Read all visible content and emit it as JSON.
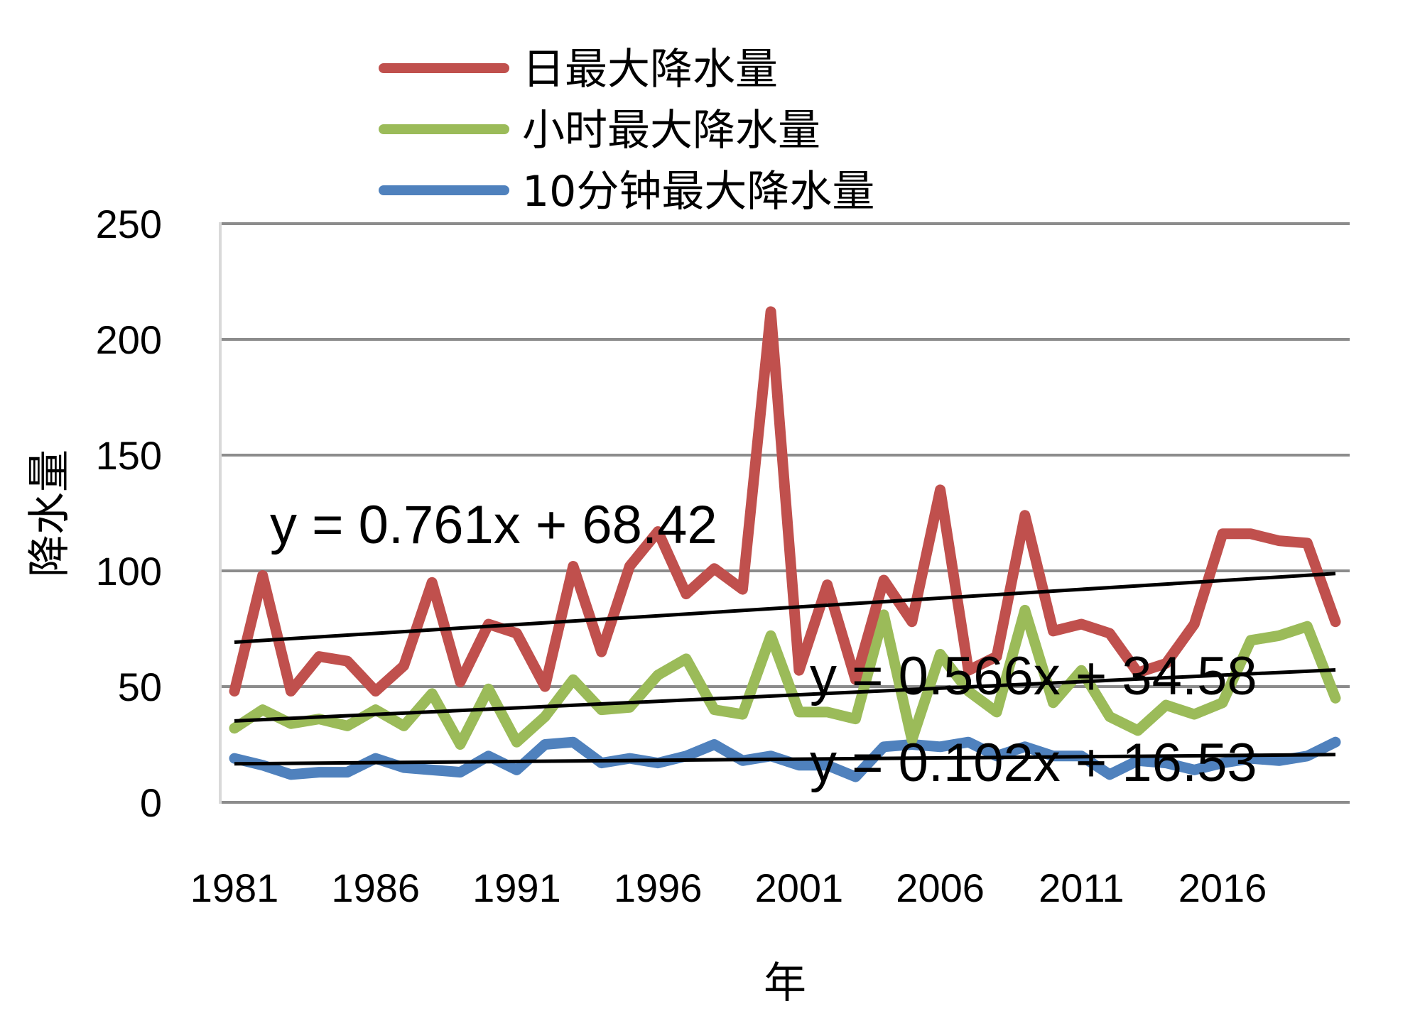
{
  "chart_data": {
    "type": "line",
    "xlabel": "年",
    "ylabel": "降水量",
    "ylim": [
      0,
      250
    ],
    "yticks": [
      "0",
      "50",
      "100",
      "150",
      "200",
      "250"
    ],
    "xticks": [
      "1981",
      "1986",
      "1991",
      "1996",
      "2001",
      "2006",
      "2011",
      "2016"
    ],
    "grid": true,
    "legend_position": "top",
    "x": [
      1981,
      1982,
      1983,
      1984,
      1985,
      1986,
      1987,
      1988,
      1989,
      1990,
      1991,
      1992,
      1993,
      1994,
      1995,
      1996,
      1997,
      1998,
      1999,
      2000,
      2001,
      2002,
      2003,
      2004,
      2005,
      2006,
      2007,
      2008,
      2009,
      2010,
      2011,
      2012,
      2013,
      2014,
      2015,
      2016,
      2017,
      2018,
      2019,
      2020
    ],
    "series": [
      {
        "name": "日最大降水量",
        "color": "#C0504D",
        "values": [
          48,
          98,
          48,
          63,
          61,
          48,
          59,
          95,
          52,
          77,
          73,
          50,
          102,
          65,
          102,
          117,
          90,
          101,
          92,
          212,
          57,
          94,
          53,
          96,
          78,
          135,
          57,
          63,
          124,
          74,
          77,
          73,
          56,
          60,
          77,
          116,
          116,
          113,
          112,
          78
        ]
      },
      {
        "name": "小时最大降水量",
        "color": "#9BBB59",
        "values": [
          32,
          40,
          34,
          36,
          33,
          40,
          33,
          47,
          25,
          49,
          26,
          37,
          53,
          40,
          41,
          55,
          62,
          40,
          38,
          72,
          39,
          39,
          36,
          81,
          27,
          64,
          48,
          39,
          83,
          43,
          57,
          37,
          31,
          42,
          38,
          43,
          70,
          72,
          76,
          45
        ]
      },
      {
        "name": "10分钟最大降水量",
        "color": "#4F81BD",
        "values": [
          19,
          16,
          12,
          13,
          13,
          19,
          15,
          14,
          13,
          20,
          14,
          25,
          26,
          17,
          19,
          17,
          20,
          25,
          18,
          20,
          16,
          16,
          11,
          24,
          25,
          24,
          26,
          20,
          24,
          20,
          20,
          12,
          18,
          17,
          14,
          17,
          19,
          18,
          20,
          26
        ]
      }
    ],
    "trendlines": [
      {
        "label": "y = 0.761x + 68.42",
        "slope": 0.761,
        "intercept": 68.42
      },
      {
        "label": "y = 0.566x + 34.58",
        "slope": 0.566,
        "intercept": 34.58
      },
      {
        "label": "y = 0.102x + 16.53",
        "slope": 0.102,
        "intercept": 16.53
      }
    ]
  }
}
